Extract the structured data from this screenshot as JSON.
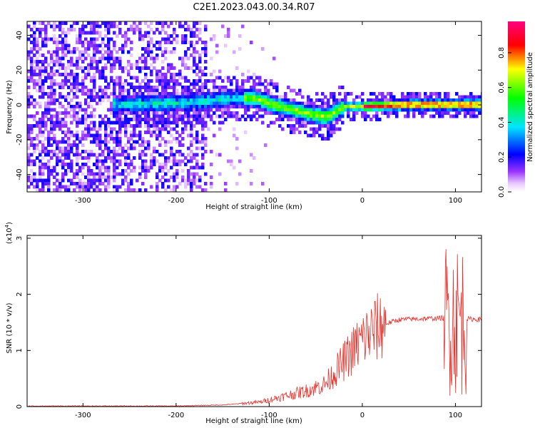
{
  "title": "C2E1.2023.043.00.34.R07",
  "chart_data": [
    {
      "type": "heatmap",
      "xlabel": "Height of straight line (km)",
      "ylabel": "Frequency (Hz)",
      "xlim": [
        -360,
        128
      ],
      "ylim": [
        -50,
        48
      ],
      "xticks": [
        -300,
        -200,
        -100,
        0,
        100
      ],
      "yticks": [
        -40,
        -20,
        0,
        20,
        40
      ],
      "colorbar": {
        "label": "Normalized spectral amplitude",
        "range": [
          0,
          0.98
        ],
        "ticks": [
          0.0,
          0.2,
          0.4,
          0.6,
          0.8
        ],
        "colormap": [
          "#ffffff",
          "#9933ff",
          "#0000ff",
          "#00e5ff",
          "#00ff00",
          "#ffff00",
          "#ff0000",
          "#ff0080"
        ]
      },
      "ridge": [
        {
          "x": -360,
          "f": 0
        },
        {
          "x": -200,
          "f": 2
        },
        {
          "x": -150,
          "f": 4
        },
        {
          "x": -120,
          "f": 5
        },
        {
          "x": -90,
          "f": 0
        },
        {
          "x": -60,
          "f": -4
        },
        {
          "x": -40,
          "f": -6
        },
        {
          "x": -20,
          "f": 0
        },
        {
          "x": 0,
          "f": 0
        },
        {
          "x": 50,
          "f": 1
        },
        {
          "x": 128,
          "f": 1
        }
      ],
      "noise_region_x": [
        -360,
        -170
      ]
    },
    {
      "type": "line",
      "xlabel": "Height of straight line (km)",
      "ylabel": "SNR (10 * v/v)",
      "ylabel_exp": "(x10",
      "ylabel_exp_power": "4",
      "ylabel_exp_close": ")",
      "xlim": [
        -360,
        128
      ],
      "ylim": [
        0,
        3.05
      ],
      "xticks": [
        -300,
        -200,
        -100,
        0,
        100
      ],
      "yticks": [
        0,
        1,
        2,
        3
      ],
      "color": "#e8302a",
      "envelope": [
        {
          "x": -360,
          "y": 0.01
        },
        {
          "x": -200,
          "y": 0.01
        },
        {
          "x": -150,
          "y": 0.03
        },
        {
          "x": -110,
          "y": 0.08
        },
        {
          "x": -80,
          "y": 0.2
        },
        {
          "x": -60,
          "y": 0.28
        },
        {
          "x": -40,
          "y": 0.4
        },
        {
          "x": -30,
          "y": 0.6
        },
        {
          "x": -20,
          "y": 0.8
        },
        {
          "x": -10,
          "y": 1.0
        },
        {
          "x": 0,
          "y": 1.2
        },
        {
          "x": 20,
          "y": 1.45
        },
        {
          "x": 40,
          "y": 1.55
        },
        {
          "x": 90,
          "y": 1.58
        },
        {
          "x": 128,
          "y": 1.55
        }
      ]
    }
  ]
}
